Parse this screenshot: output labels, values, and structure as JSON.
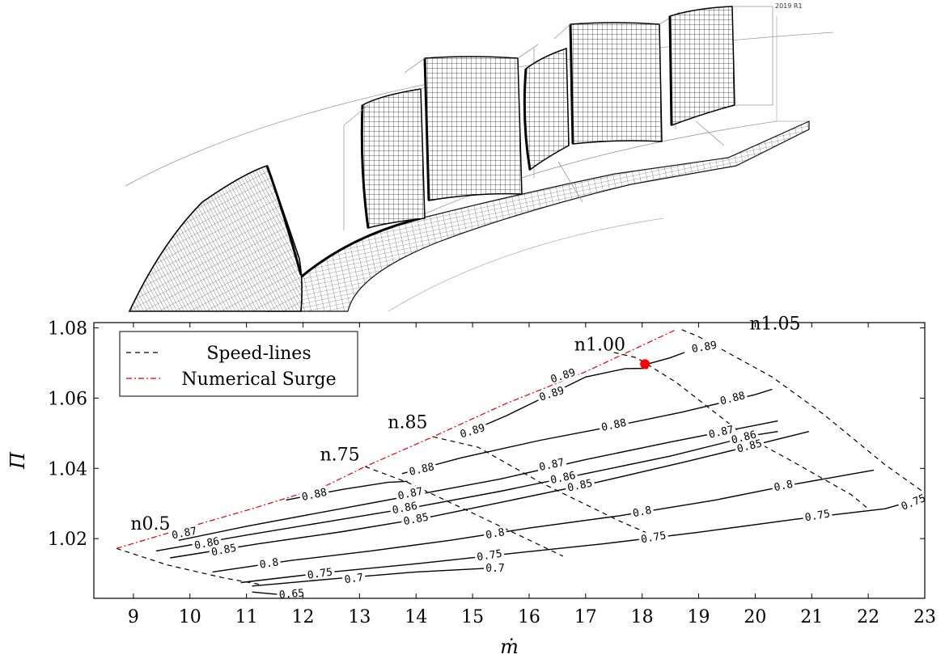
{
  "chart_data": {
    "type": "line",
    "title": "",
    "xlabel": "ṁ",
    "ylabel": "Π",
    "xlim": [
      8.3,
      23
    ],
    "ylim": [
      1.003,
      1.0815
    ],
    "xticks": [
      "9",
      "10",
      "11",
      "12",
      "13",
      "14",
      "15",
      "16",
      "17",
      "18",
      "19",
      "20",
      "21",
      "22",
      "23"
    ],
    "yticks": [
      "1.02",
      "1.04",
      "1.06",
      "1.08"
    ],
    "legend": {
      "placement": "top-left",
      "entries": [
        {
          "label": "Speed-lines",
          "style": "dashed",
          "color": "#000000"
        },
        {
          "label": "Numerical Surge",
          "style": "dash-dot",
          "color": "#e00000"
        }
      ]
    },
    "surge_line": [
      [
        8.7,
        1.0172
      ],
      [
        9.6,
        1.0215
      ],
      [
        11.1,
        1.0285
      ],
      [
        12.4,
        1.035
      ],
      [
        13.1,
        1.0405
      ],
      [
        14.3,
        1.049
      ],
      [
        15.6,
        1.0585
      ],
      [
        17.0,
        1.0675
      ],
      [
        18.6,
        1.0795
      ]
    ],
    "speed_lines": [
      {
        "label": "n0.5",
        "points": [
          [
            8.7,
            1.0172
          ],
          [
            9.6,
            1.0125
          ],
          [
            10.6,
            1.0088
          ],
          [
            11.3,
            1.0068
          ]
        ]
      },
      {
        "label": "n.75",
        "points": [
          [
            13.1,
            1.0405
          ],
          [
            13.85,
            1.036
          ],
          [
            15.1,
            1.0265
          ],
          [
            16.6,
            1.015
          ]
        ]
      },
      {
        "label": "n.85",
        "points": [
          [
            14.3,
            1.049
          ],
          [
            15.1,
            1.046
          ],
          [
            16.2,
            1.036
          ],
          [
            17.6,
            1.025
          ],
          [
            18.1,
            1.0215
          ]
        ]
      },
      {
        "label": "n1.00",
        "points": [
          [
            17.5,
            1.073
          ],
          [
            17.9,
            1.0715
          ],
          [
            18.6,
            1.0645
          ],
          [
            19.8,
            1.0495
          ],
          [
            20.6,
            1.0425
          ],
          [
            21.7,
            1.0325
          ],
          [
            22.0,
            1.0285
          ]
        ]
      },
      {
        "label": "n1.05",
        "points": [
          [
            18.7,
            1.0795
          ],
          [
            19.0,
            1.0775
          ],
          [
            20.3,
            1.066
          ],
          [
            21.2,
            1.0555
          ],
          [
            22.3,
            1.041
          ],
          [
            23.0,
            1.033
          ]
        ]
      }
    ],
    "efficiency_contours": [
      {
        "level": "0.89",
        "points": [
          [
            14.8,
            1.0495
          ],
          [
            15.6,
            1.055
          ],
          [
            16.3,
            1.0605
          ],
          [
            17.0,
            1.066
          ],
          [
            17.7,
            1.0684
          ],
          [
            18.1,
            1.0685
          ]
        ]
      },
      {
        "level": "0.89",
        "points": [
          [
            18.05,
            1.0695
          ],
          [
            18.5,
            1.0715
          ],
          [
            18.75,
            1.073
          ]
        ]
      },
      {
        "level": "0.88",
        "points": [
          [
            11.7,
            1.031
          ],
          [
            12.7,
            1.034
          ],
          [
            13.5,
            1.036
          ],
          [
            13.85,
            1.0363
          ]
        ]
      },
      {
        "level": "0.88",
        "points": [
          [
            13.75,
            1.0385
          ],
          [
            14.8,
            1.043
          ],
          [
            16.2,
            1.048
          ],
          [
            17.5,
            1.052
          ],
          [
            18.7,
            1.056
          ],
          [
            20.0,
            1.061
          ],
          [
            20.3,
            1.0625
          ]
        ]
      },
      {
        "level": "0.87",
        "points": [
          [
            9.8,
            1.0195
          ],
          [
            11.0,
            1.0235
          ],
          [
            12.5,
            1.028
          ],
          [
            14.0,
            1.0325
          ],
          [
            15.5,
            1.037
          ],
          [
            17.0,
            1.0425
          ],
          [
            18.5,
            1.0475
          ],
          [
            20.4,
            1.0535
          ]
        ]
      },
      {
        "level": "0.86",
        "points": [
          [
            9.4,
            1.0165
          ],
          [
            11.0,
            1.021
          ],
          [
            12.5,
            1.025
          ],
          [
            14.0,
            1.029
          ],
          [
            15.5,
            1.0335
          ],
          [
            17.0,
            1.0385
          ],
          [
            18.5,
            1.0435
          ],
          [
            20.0,
            1.0495
          ],
          [
            20.4,
            1.0505
          ]
        ]
      },
      {
        "level": "0.85",
        "points": [
          [
            9.65,
            1.0145
          ],
          [
            11.2,
            1.0185
          ],
          [
            12.7,
            1.022
          ],
          [
            14.2,
            1.026
          ],
          [
            15.7,
            1.031
          ],
          [
            17.2,
            1.036
          ],
          [
            18.8,
            1.042
          ],
          [
            20.2,
            1.0475
          ],
          [
            20.95,
            1.0505
          ]
        ]
      },
      {
        "level": "0.8",
        "points": [
          [
            10.4,
            1.0105
          ],
          [
            11.8,
            1.0138
          ],
          [
            13.2,
            1.0165
          ],
          [
            14.6,
            1.0195
          ],
          [
            16.0,
            1.023
          ],
          [
            17.6,
            1.0265
          ],
          [
            19.3,
            1.031
          ],
          [
            20.7,
            1.0355
          ],
          [
            22.1,
            1.0395
          ]
        ]
      },
      {
        "level": "0.75",
        "points": [
          [
            10.9,
            1.0075
          ],
          [
            12.5,
            1.0105
          ],
          [
            14.1,
            1.013
          ],
          [
            15.7,
            1.0158
          ],
          [
            17.3,
            1.0185
          ],
          [
            19.0,
            1.0218
          ],
          [
            20.7,
            1.0255
          ],
          [
            22.3,
            1.0285
          ],
          [
            22.95,
            1.0315
          ]
        ]
      },
      {
        "level": "0.7",
        "points": [
          [
            11.1,
            1.0065
          ],
          [
            12.5,
            1.0085
          ],
          [
            14.0,
            1.0105
          ],
          [
            15.2,
            1.0115
          ]
        ]
      },
      {
        "level": "0.65",
        "points": [
          [
            11.1,
            1.0048
          ],
          [
            11.5,
            1.0042
          ],
          [
            12.0,
            1.004
          ]
        ]
      }
    ],
    "contour_labels": [
      {
        "text": "0.89",
        "x": 15.0,
        "y": 1.0506,
        "angle": -17
      },
      {
        "text": "0.89",
        "x": 16.4,
        "y": 1.0612,
        "angle": -18
      },
      {
        "text": "0.89",
        "x": 16.6,
        "y": 1.0663,
        "angle": -18
      },
      {
        "text": "0.89",
        "x": 19.1,
        "y": 1.0745,
        "angle": -10
      },
      {
        "text": "0.88",
        "x": 12.2,
        "y": 1.0325,
        "angle": -12
      },
      {
        "text": "0.88",
        "x": 14.1,
        "y": 1.0397,
        "angle": -13
      },
      {
        "text": "0.88",
        "x": 17.5,
        "y": 1.0523,
        "angle": -12
      },
      {
        "text": "0.88",
        "x": 19.6,
        "y": 1.0599,
        "angle": -14
      },
      {
        "text": "0.87",
        "x": 9.9,
        "y": 1.0215,
        "angle": -11
      },
      {
        "text": "0.87",
        "x": 13.9,
        "y": 1.0328,
        "angle": -12
      },
      {
        "text": "0.87",
        "x": 16.4,
        "y": 1.041,
        "angle": -12
      },
      {
        "text": "0.87",
        "x": 19.4,
        "y": 1.0503,
        "angle": -13
      },
      {
        "text": "0.86",
        "x": 10.3,
        "y": 1.0186,
        "angle": -11
      },
      {
        "text": "0.86",
        "x": 13.8,
        "y": 1.0287,
        "angle": -11
      },
      {
        "text": "0.86",
        "x": 16.6,
        "y": 1.0373,
        "angle": -12
      },
      {
        "text": "0.86",
        "x": 19.8,
        "y": 1.0488,
        "angle": -14
      },
      {
        "text": "0.85",
        "x": 10.6,
        "y": 1.0167,
        "angle": -11
      },
      {
        "text": "0.85",
        "x": 14.0,
        "y": 1.0255,
        "angle": -11
      },
      {
        "text": "0.85",
        "x": 16.9,
        "y": 1.0351,
        "angle": -12
      },
      {
        "text": "0.85",
        "x": 19.9,
        "y": 1.0463,
        "angle": -14
      },
      {
        "text": "0.8",
        "x": 11.4,
        "y": 1.0129,
        "angle": -9
      },
      {
        "text": "0.8",
        "x": 15.4,
        "y": 1.0214,
        "angle": -10
      },
      {
        "text": "0.8",
        "x": 18.0,
        "y": 1.0276,
        "angle": -11
      },
      {
        "text": "0.8",
        "x": 20.5,
        "y": 1.035,
        "angle": -12
      },
      {
        "text": "0.75",
        "x": 12.3,
        "y": 1.01,
        "angle": -8
      },
      {
        "text": "0.75",
        "x": 15.3,
        "y": 1.0152,
        "angle": -9
      },
      {
        "text": "0.75",
        "x": 18.2,
        "y": 1.0203,
        "angle": -10
      },
      {
        "text": "0.75",
        "x": 21.1,
        "y": 1.0265,
        "angle": -10
      },
      {
        "text": "0.75",
        "x": 22.8,
        "y": 1.0303,
        "angle": -22
      },
      {
        "text": "0.7",
        "x": 12.9,
        "y": 1.0086,
        "angle": -8
      },
      {
        "text": "0.7",
        "x": 15.4,
        "y": 1.0115,
        "angle": 0
      },
      {
        "text": "0.65",
        "x": 11.8,
        "y": 1.0042,
        "angle": -5
      }
    ],
    "speed_labels": [
      {
        "text": "n0.5",
        "x": 8.95,
        "y": 1.0226
      },
      {
        "text": "n.75",
        "x": 12.3,
        "y": 1.0422
      },
      {
        "text": "n.85",
        "x": 13.5,
        "y": 1.0515
      },
      {
        "text": "n1.00",
        "x": 16.8,
        "y": 1.0736
      },
      {
        "text": "n1.05",
        "x": 19.9,
        "y": 1.0795
      }
    ],
    "marker": {
      "x": 18.05,
      "y": 1.0697,
      "color": "#ff0000"
    }
  },
  "mesh_panel": {
    "tag": "2019 R1",
    "icon": "turbomachinery-blade-mesh"
  }
}
